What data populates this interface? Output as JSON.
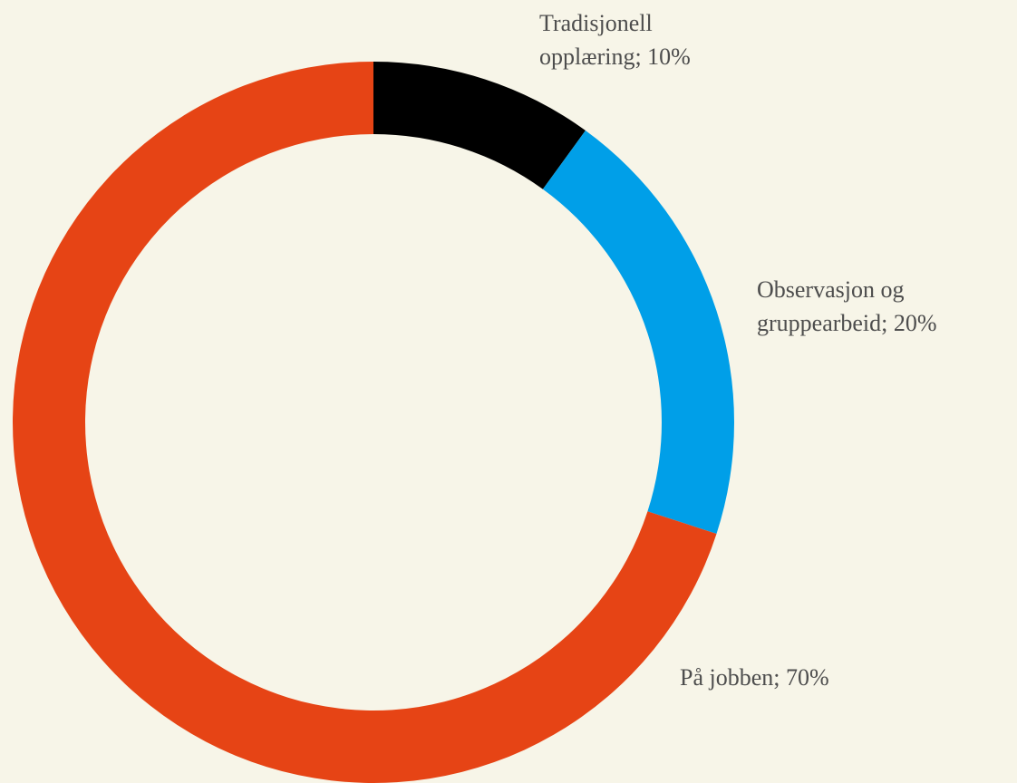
{
  "chart_data": {
    "type": "donut",
    "values": [
      10,
      20,
      70
    ],
    "value_labels": [
      [
        "Tradisjonell",
        "opplæring; 10%"
      ],
      [
        "Observasjon og",
        "gruppearbeid; 20%"
      ],
      [
        "På jobben; 70%"
      ]
    ],
    "colors": [
      "#000000",
      "#009fe8",
      "#e64415"
    ]
  }
}
